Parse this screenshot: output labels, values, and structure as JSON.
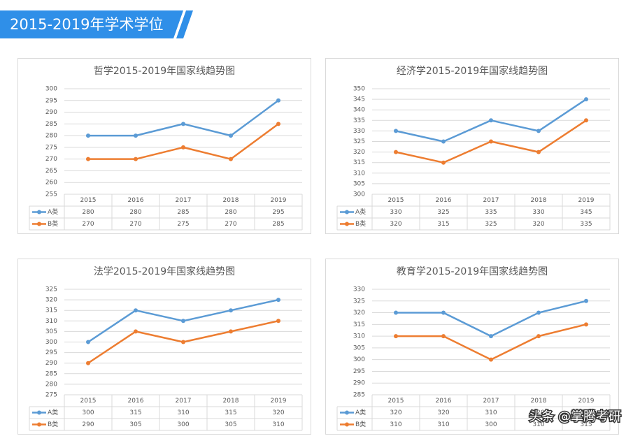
{
  "header": {
    "title": "2015-2019年学术学位"
  },
  "watermark": "头条 @掌腾考研",
  "chart_data": [
    {
      "type": "line",
      "title": "哲学2015-2019年国家线趋势图",
      "categories": [
        "2015",
        "2016",
        "2017",
        "2018",
        "2019"
      ],
      "series": [
        {
          "name": "A类",
          "color": "#5b9bd5",
          "values": [
            280,
            280,
            285,
            280,
            295
          ]
        },
        {
          "name": "B类",
          "color": "#ed7d31",
          "values": [
            270,
            270,
            275,
            270,
            285
          ]
        }
      ],
      "ylim": [
        255,
        300
      ],
      "yticks": [
        255,
        260,
        265,
        270,
        275,
        280,
        285,
        290,
        295,
        300
      ],
      "grid": true
    },
    {
      "type": "line",
      "title": "经济学2015-2019年国家线趋势图",
      "categories": [
        "2015",
        "2016",
        "2017",
        "2018",
        "2019"
      ],
      "series": [
        {
          "name": "A类",
          "color": "#5b9bd5",
          "values": [
            330,
            325,
            335,
            330,
            345
          ]
        },
        {
          "name": "B类",
          "color": "#ed7d31",
          "values": [
            320,
            315,
            325,
            320,
            335
          ]
        }
      ],
      "ylim": [
        300,
        350
      ],
      "yticks": [
        300,
        305,
        310,
        315,
        320,
        325,
        330,
        335,
        340,
        345,
        350
      ],
      "grid": true
    },
    {
      "type": "line",
      "title": "法学2015-2019年国家线趋势图",
      "categories": [
        "2015",
        "2016",
        "2017",
        "2018",
        "2019"
      ],
      "series": [
        {
          "name": "A类",
          "color": "#5b9bd5",
          "values": [
            300,
            315,
            310,
            315,
            320
          ]
        },
        {
          "name": "B类",
          "color": "#ed7d31",
          "values": [
            290,
            305,
            300,
            305,
            310
          ]
        }
      ],
      "ylim": [
        275,
        325
      ],
      "yticks": [
        275,
        280,
        285,
        290,
        295,
        300,
        305,
        310,
        315,
        320,
        325
      ],
      "grid": true
    },
    {
      "type": "line",
      "title": "教育学2015-2019年国家线趋势图",
      "categories": [
        "2015",
        "2016",
        "2017",
        "2018",
        "2019"
      ],
      "series": [
        {
          "name": "A类",
          "color": "#5b9bd5",
          "values": [
            320,
            320,
            310,
            320,
            325
          ]
        },
        {
          "name": "B类",
          "color": "#ed7d31",
          "values": [
            310,
            310,
            300,
            310,
            315
          ]
        }
      ],
      "ylim": [
        285,
        330
      ],
      "yticks": [
        285,
        290,
        295,
        300,
        305,
        310,
        315,
        320,
        325,
        330
      ],
      "grid": true
    }
  ]
}
